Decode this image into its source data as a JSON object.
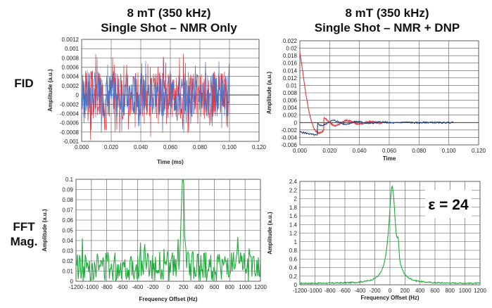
{
  "titles": {
    "left_line1": "8 mT (350 kHz)",
    "left_line2": "Single Shot – NMR Only",
    "right_line1": "8 mT (350 kHz)",
    "right_line2": "Single Shot – NMR + DNP"
  },
  "row_labels": {
    "fid": "FID",
    "fft_line1": "FFT",
    "fft_line2": "Mag."
  },
  "colors": {
    "red": "#e8333c",
    "blue": "#4a72c4",
    "navy": "#1f3c7a",
    "green": "#1faa3a",
    "grid": "#555555"
  },
  "chart_data": [
    {
      "id": "fid_nmr_only",
      "type": "line",
      "xlabel": "Time (ms)",
      "ylabel": "Amplitude (a.u.)",
      "xlim": [
        0,
        0.12
      ],
      "ylim": [
        -0.001,
        0.0012
      ],
      "xticks": [
        "0.000",
        "0.020",
        "0.040",
        "0.060",
        "0.080",
        "0.100",
        "0.120"
      ],
      "yticks": [
        "-0.001",
        "-0.0008",
        "-0.0006",
        "-0.0004",
        "-0.0002",
        "0",
        "0.0002",
        "0.0004",
        "0.0006",
        "0.0008",
        "0.001",
        "0.0012"
      ],
      "series": [
        {
          "name": "red",
          "color": "#e8333c",
          "model": "noise",
          "x_range": [
            0,
            0.1
          ],
          "amplitude": 0.0006,
          "seed": 3
        },
        {
          "name": "blue",
          "color": "#4a72c4",
          "model": "noise",
          "x_range": [
            0,
            0.1
          ],
          "amplitude": 0.00055,
          "seed": 7
        }
      ]
    },
    {
      "id": "fid_nmr_dnp",
      "type": "line",
      "xlabel": "Time",
      "ylabel": "Amplitude (a.u.)",
      "xlim": [
        0,
        0.12
      ],
      "ylim": [
        -0.006,
        0.022
      ],
      "xticks": [
        "0.000",
        "0.020",
        "0.040",
        "0.060",
        "0.080",
        "0.100",
        "0.120"
      ],
      "yticks": [
        "-0.006",
        "-0.004",
        "-0.002",
        "0",
        "0.002",
        "0.004",
        "0.006",
        "0.008",
        "0.01",
        "0.012",
        "0.014",
        "0.016",
        "0.018",
        "0.02",
        "0.022"
      ],
      "series": [
        {
          "name": "red",
          "color": "#e8333c",
          "model": "damped",
          "x_range": [
            0,
            0.055
          ],
          "amp0": 0.019,
          "decay": 0.0075,
          "freq_hz_ms": 62,
          "phase": 0,
          "seed": 11
        },
        {
          "name": "navy",
          "color": "#1f3c7a",
          "model": "damped_neg",
          "x_range": [
            0,
            0.103
          ],
          "amp0": -0.003,
          "decay": 0.018,
          "freq_hz_ms": 62,
          "phase": 0.6,
          "seed": 5
        }
      ]
    },
    {
      "id": "fft_nmr_only",
      "type": "line",
      "xlabel": "Frequency Offset (Hz)",
      "ylabel": "Amplitude (a.u.)",
      "xlim": [
        -1200,
        1200
      ],
      "ylim": [
        0,
        0.1
      ],
      "xticks": [
        "-1200",
        "-1000",
        "-800",
        "-600",
        "-400",
        "-200",
        "0",
        "200",
        "400",
        "600",
        "800",
        "1000",
        "1200"
      ],
      "yticks": [
        "0",
        "0.01",
        "0.02",
        "0.03",
        "0.04",
        "0.05",
        "0.06",
        "0.07",
        "0.08",
        "0.09",
        "0.1"
      ],
      "series": [
        {
          "name": "green",
          "color": "#1faa3a",
          "model": "noisy_peak",
          "peak_x": 190,
          "peak_y": 0.095,
          "noise_level": 0.018,
          "seed": 13
        }
      ]
    },
    {
      "id": "fft_nmr_dnp",
      "type": "line",
      "xlabel": "Frequency Offset (Hz)",
      "ylabel": "Amplitude (a.u.)",
      "xlim": [
        -1200,
        1200
      ],
      "ylim": [
        0,
        2.4
      ],
      "xticks": [
        "-1200",
        "-1000",
        "-800",
        "-600",
        "-400",
        "-200",
        "0",
        "200",
        "400",
        "600",
        "800",
        "1000",
        "1200"
      ],
      "yticks": [
        "0",
        "0.2",
        "0.4",
        "0.6",
        "0.8",
        "1",
        "1.2",
        "1.4",
        "1.6",
        "1.8",
        "2",
        "2.2",
        "2.4"
      ],
      "annotation": "ε = 24",
      "series": [
        {
          "name": "green",
          "color": "#1faa3a",
          "model": "lorentz",
          "peak_x": 30,
          "peak_y": 2.25,
          "width": 55,
          "seed": 17
        }
      ]
    }
  ]
}
